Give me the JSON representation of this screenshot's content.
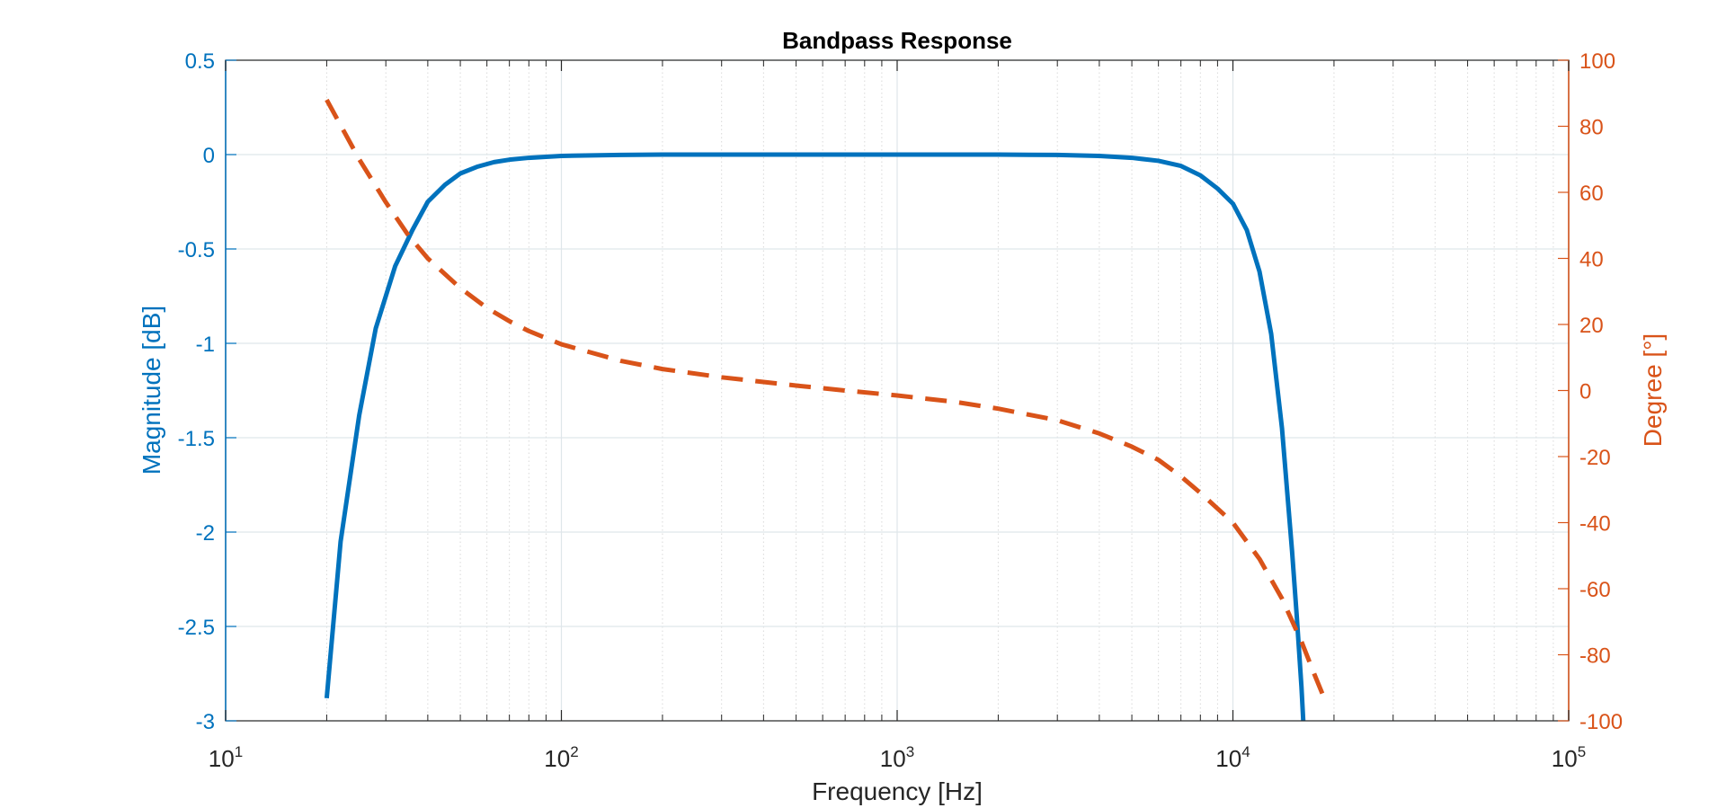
{
  "chart_data": {
    "type": "line",
    "title": "Bandpass Response",
    "xlabel": "Frequency [Hz]",
    "x_scale": "log",
    "xlim": [
      10,
      100000
    ],
    "x_ticks": [
      {
        "base": "10",
        "exp": "1",
        "value": 10
      },
      {
        "base": "10",
        "exp": "2",
        "value": 100
      },
      {
        "base": "10",
        "exp": "3",
        "value": 1000
      },
      {
        "base": "10",
        "exp": "4",
        "value": 10000
      },
      {
        "base": "10",
        "exp": "5",
        "value": 100000
      }
    ],
    "y_left": {
      "label": "Magnitude [dB]",
      "lim": [
        -3,
        0.5
      ],
      "ticks": [
        "0.5",
        "0",
        "-0.5",
        "-1",
        "-1.5",
        "-2",
        "-2.5",
        "-3"
      ],
      "color": "#0072BD"
    },
    "y_right": {
      "label": "Degree [°]",
      "lim": [
        -100,
        100
      ],
      "ticks": [
        "100",
        "80",
        "60",
        "40",
        "20",
        "0",
        "-20",
        "-40",
        "-60",
        "-80",
        "-100"
      ],
      "color": "#D95319"
    },
    "grid": true,
    "minor_grid": true,
    "series": [
      {
        "axis": "left",
        "style": "solid",
        "color": "#0072BD",
        "points": [
          [
            20,
            -2.88
          ],
          [
            22,
            -2.05
          ],
          [
            25,
            -1.38
          ],
          [
            28,
            -0.92
          ],
          [
            32,
            -0.59
          ],
          [
            36,
            -0.4
          ],
          [
            40,
            -0.25
          ],
          [
            45,
            -0.16
          ],
          [
            50,
            -0.1
          ],
          [
            56,
            -0.065
          ],
          [
            63,
            -0.04
          ],
          [
            70,
            -0.027
          ],
          [
            80,
            -0.017
          ],
          [
            100,
            -0.007
          ],
          [
            150,
            -0.002
          ],
          [
            200,
            0
          ],
          [
            500,
            0
          ],
          [
            1000,
            0
          ],
          [
            2000,
            0
          ],
          [
            3000,
            -0.002
          ],
          [
            4000,
            -0.007
          ],
          [
            5000,
            -0.017
          ],
          [
            6000,
            -0.033
          ],
          [
            7000,
            -0.06
          ],
          [
            8000,
            -0.11
          ],
          [
            9000,
            -0.18
          ],
          [
            10000,
            -0.26
          ],
          [
            11000,
            -0.4
          ],
          [
            12000,
            -0.62
          ],
          [
            13000,
            -0.95
          ],
          [
            14000,
            -1.45
          ],
          [
            15000,
            -2.1
          ],
          [
            15500,
            -2.45
          ],
          [
            16000,
            -2.82
          ],
          [
            16200,
            -3.0
          ]
        ]
      },
      {
        "axis": "right",
        "style": "dashed",
        "color": "#D95319",
        "points": [
          [
            20,
            88
          ],
          [
            25,
            70
          ],
          [
            30,
            57
          ],
          [
            35,
            47
          ],
          [
            40,
            40
          ],
          [
            50,
            31
          ],
          [
            60,
            25
          ],
          [
            70,
            21
          ],
          [
            80,
            18
          ],
          [
            100,
            14
          ],
          [
            150,
            9
          ],
          [
            200,
            6.5
          ],
          [
            300,
            4
          ],
          [
            500,
            1.5
          ],
          [
            700,
            0
          ],
          [
            1000,
            -1.5
          ],
          [
            1500,
            -3.5
          ],
          [
            2000,
            -5.5
          ],
          [
            3000,
            -9
          ],
          [
            4000,
            -13
          ],
          [
            5000,
            -17
          ],
          [
            6000,
            -21
          ],
          [
            7000,
            -26
          ],
          [
            8000,
            -31
          ],
          [
            10000,
            -40
          ],
          [
            12000,
            -51
          ],
          [
            14000,
            -63
          ],
          [
            16000,
            -76
          ],
          [
            17500,
            -86
          ],
          [
            18500,
            -92
          ]
        ]
      }
    ]
  }
}
